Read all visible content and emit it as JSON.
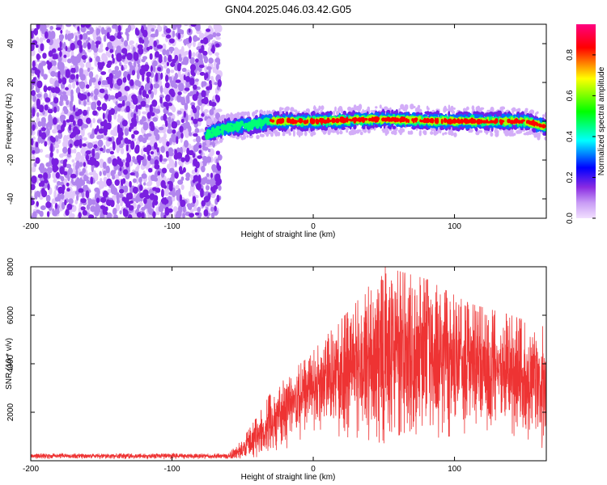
{
  "title": "GN04.2025.046.03.42.G05",
  "chart_data": [
    {
      "type": "heatmap",
      "xlabel": "Height of straight line (km)",
      "ylabel": "Frequency (Hz)",
      "xlim": [
        -200,
        165
      ],
      "ylim": [
        -50,
        50
      ],
      "xticks": [
        -200,
        -100,
        0,
        100
      ],
      "yticks": [
        -40,
        -20,
        0,
        20,
        40
      ],
      "grid": false,
      "colorbar": {
        "label": "Normalized spectral amplitude",
        "range": [
          0.0,
          0.95
        ],
        "ticks": [
          0.0,
          0.2,
          0.4,
          0.6,
          0.8
        ],
        "colors": [
          "#e6c8ff",
          "#8a2be2",
          "#0000ff",
          "#00ffff",
          "#00ff00",
          "#ffff00",
          "#ff0000",
          "#ff0080"
        ]
      },
      "regions": [
        {
          "x_range": [
            -200,
            -66
          ],
          "y_range": [
            -50,
            50
          ],
          "amplitude": 0.1,
          "pattern": "noise"
        },
        {
          "x_range": [
            -76,
            165
          ],
          "center_hz": [
            [
              -76,
              -7
            ],
            [
              -60,
              -3
            ],
            [
              -45,
              -2
            ],
            [
              -30,
              0
            ],
            [
              0,
              0
            ],
            [
              50,
              1
            ],
            [
              100,
              0
            ],
            [
              150,
              0
            ],
            [
              165,
              -3
            ]
          ],
          "amplitude_peak": 0.9
        }
      ]
    },
    {
      "type": "line",
      "xlabel": "Height of straight line (km)",
      "ylabel": "SNR (10 * v/v)",
      "xlim": [
        -200,
        165
      ],
      "ylim": [
        0,
        8000
      ],
      "xticks": [
        -200,
        -100,
        0,
        100
      ],
      "yticks": [
        2000,
        4000,
        6000,
        8000
      ],
      "grid": false,
      "series": [
        {
          "color": "#ee3333",
          "envelope": [
            {
              "x": -200,
              "low": 100,
              "high": 300
            },
            {
              "x": -60,
              "low": 100,
              "high": 300
            },
            {
              "x": -50,
              "low": 100,
              "high": 900
            },
            {
              "x": -40,
              "low": 200,
              "high": 1800
            },
            {
              "x": -30,
              "low": 400,
              "high": 2800
            },
            {
              "x": -20,
              "low": 800,
              "high": 3500
            },
            {
              "x": -5,
              "low": 1500,
              "high": 4200
            },
            {
              "x": 10,
              "low": 1800,
              "high": 5200
            },
            {
              "x": 30,
              "low": 1500,
              "high": 6500
            },
            {
              "x": 50,
              "low": 1200,
              "high": 8000
            },
            {
              "x": 80,
              "low": 1500,
              "high": 7500
            },
            {
              "x": 110,
              "low": 1800,
              "high": 6500
            },
            {
              "x": 140,
              "low": 1500,
              "high": 6000
            },
            {
              "x": 165,
              "low": 800,
              "high": 5500
            }
          ]
        }
      ]
    }
  ]
}
